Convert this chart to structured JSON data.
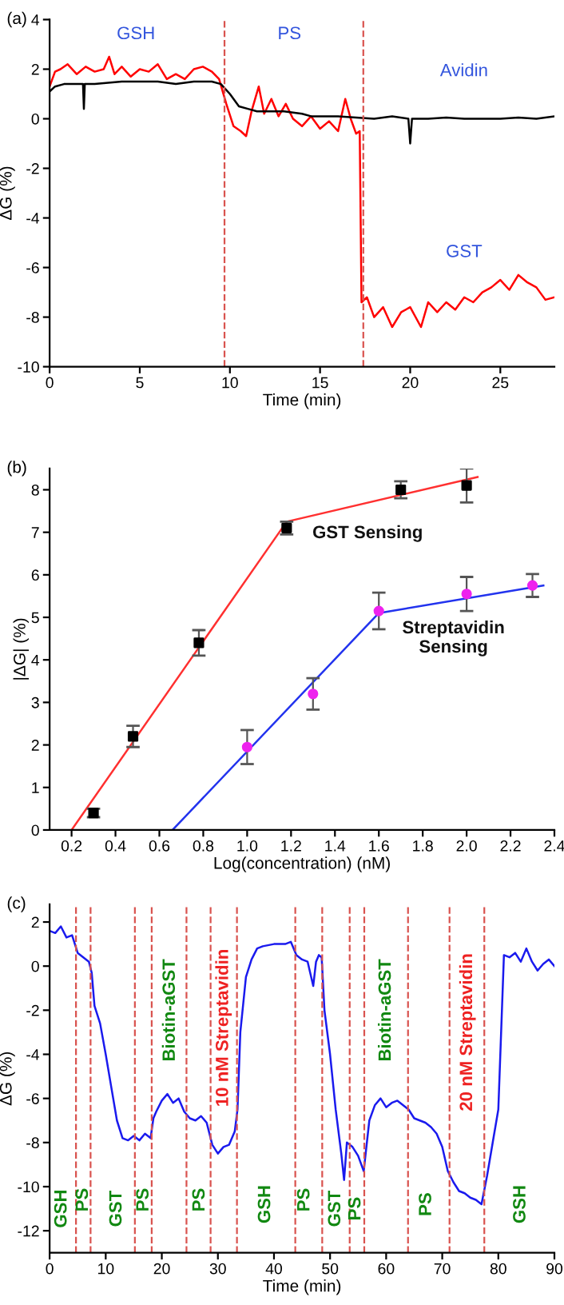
{
  "chart_data": [
    {
      "type": "line",
      "title": "(a)",
      "xlabel": "Time (min)",
      "ylabel": "ΔG (%)",
      "xlim": [
        0,
        28
      ],
      "xticks": [
        0,
        5,
        10,
        15,
        20,
        25
      ],
      "ylim": [
        -10,
        4
      ],
      "yticks": [
        -10,
        -8,
        -6,
        -4,
        -2,
        0,
        2,
        4
      ],
      "grid": false,
      "legend": false,
      "marker": "none",
      "line_style": "solid",
      "series": [
        {
          "color": "#ff0000",
          "x": [
            0,
            0.3,
            0.6,
            1,
            1.5,
            2,
            2.5,
            3,
            3.3,
            3.6,
            4,
            4.5,
            5,
            5.5,
            6,
            6.5,
            7,
            7.5,
            8,
            8.5,
            9,
            9.4,
            9.8,
            10.2,
            10.6,
            10.9,
            11.2,
            11.6,
            11.9,
            12.3,
            12.7,
            13.1,
            13.5,
            14,
            14.5,
            15,
            15.5,
            16,
            16.4,
            16.7,
            17.0,
            17.2,
            17.3,
            17.6,
            18,
            18.5,
            19,
            19.5,
            20,
            20.6,
            21,
            21.5,
            22,
            22.5,
            23,
            23.5,
            24,
            24.5,
            25,
            25.5,
            26,
            26.5,
            27,
            27.5,
            28
          ],
          "values": [
            1.3,
            1.9,
            2.0,
            2.2,
            1.8,
            2.1,
            1.9,
            2.0,
            2.5,
            1.8,
            2.1,
            1.7,
            2.0,
            1.9,
            2.2,
            1.6,
            1.8,
            1.6,
            2.0,
            2.1,
            1.9,
            1.6,
            0.6,
            -0.3,
            -0.5,
            -0.7,
            0.3,
            1.3,
            0.2,
            0.8,
            0.1,
            0.6,
            0.0,
            -0.3,
            0.1,
            -0.4,
            -0.1,
            -0.5,
            0.8,
            0.0,
            -0.6,
            -0.5,
            -7.4,
            -7.2,
            -8.0,
            -7.6,
            -8.4,
            -7.8,
            -7.6,
            -8.4,
            -7.4,
            -7.8,
            -7.4,
            -7.7,
            -7.2,
            -7.4,
            -7.0,
            -6.8,
            -6.5,
            -6.9,
            -6.3,
            -6.6,
            -6.8,
            -7.3,
            -7.2
          ]
        },
        {
          "color": "#000000",
          "x": [
            0,
            0.3,
            0.8,
            1.5,
            1.85,
            1.9,
            1.95,
            2.5,
            4,
            5,
            6,
            7,
            8,
            9,
            9.5,
            10,
            10.5,
            11,
            11.5,
            12,
            13,
            14,
            14.5,
            15,
            16,
            17,
            18,
            19,
            19.9,
            20,
            20.1,
            21,
            22,
            23,
            24,
            25,
            26,
            27,
            28
          ],
          "values": [
            1.1,
            1.3,
            1.4,
            1.4,
            1.4,
            0.4,
            1.4,
            1.4,
            1.5,
            1.5,
            1.5,
            1.4,
            1.5,
            1.5,
            1.4,
            1.0,
            0.5,
            0.4,
            0.3,
            0.3,
            0.3,
            0.2,
            0.1,
            0.1,
            0.1,
            0.05,
            0.0,
            0.1,
            0.0,
            -1.0,
            0.0,
            0.0,
            0.05,
            0.0,
            0.0,
            0.0,
            0.05,
            0.0,
            0.1
          ]
        }
      ],
      "ref_lines": [
        {
          "axis": "x",
          "value": 9.7,
          "color": "#d9534f",
          "line_style": "dashed"
        },
        {
          "axis": "x",
          "value": 17.4,
          "color": "#d9534f",
          "line_style": "dashed"
        }
      ],
      "annotations": [
        "GSH",
        "PS",
        "Avidin",
        "GST"
      ]
    },
    {
      "type": "scatter",
      "title": "(b)",
      "xlabel": "Log(concentration) (nM)",
      "ylabel": "|ΔG| (%)",
      "xlim": [
        0.1,
        2.4
      ],
      "xticks": [
        0.2,
        0.4,
        0.6,
        0.8,
        {
          "value": 1.0,
          "label": "1.0"
        },
        1.2,
        1.4,
        1.6,
        1.8,
        {
          "value": 2.0,
          "label": "2.0"
        },
        2.2,
        2.4
      ],
      "ylim": [
        0,
        8.5
      ],
      "yticks": [
        0,
        1,
        2,
        3,
        4,
        5,
        6,
        7,
        8
      ],
      "grid": false,
      "legend": false,
      "series": [
        {
          "type": "line",
          "color": "#ff3030",
          "x": [
            0.2,
            1.18,
            2.05
          ],
          "values": [
            0,
            7.25,
            8.3
          ]
        },
        {
          "type": "line",
          "color": "#2233ee",
          "x": [
            0.66,
            1.6,
            2.35
          ],
          "values": [
            0,
            5.1,
            5.75
          ]
        },
        {
          "type": "scatter",
          "marker": "square",
          "color": "#000000",
          "x": [
            0.3,
            0.48,
            0.78,
            1.18,
            1.7,
            2.0
          ],
          "values": [
            0.4,
            2.2,
            4.4,
            7.1,
            8.0,
            8.1
          ],
          "errors": [
            0.1,
            0.25,
            0.3,
            0.15,
            0.2,
            0.4
          ]
        },
        {
          "type": "scatter",
          "marker": "circle",
          "color": "#ee22ee",
          "x": [
            1.0,
            1.3,
            1.6,
            2.0,
            2.3
          ],
          "values": [
            1.95,
            3.2,
            5.15,
            5.55,
            5.75
          ],
          "errors": [
            0.4,
            0.37,
            0.43,
            0.4,
            0.27
          ]
        }
      ],
      "annotations": [
        "GST Sensing",
        "Streptavidin\nSensing"
      ]
    },
    {
      "type": "line",
      "title": "(c)",
      "xlabel": "Time (min)",
      "ylabel": "ΔG (%)",
      "xlim": [
        0,
        90
      ],
      "xticks": [
        0,
        10,
        20,
        30,
        40,
        50,
        60,
        70,
        80,
        90
      ],
      "ylim": [
        -13,
        2.8
      ],
      "yticks": [
        -12,
        -10,
        -8,
        -6,
        -4,
        -2,
        0,
        2
      ],
      "grid": false,
      "legend": false,
      "marker": "none",
      "line_style": "solid",
      "series": [
        {
          "color": "#1a1aee",
          "x": [
            0,
            1,
            2,
            3,
            4,
            5,
            6,
            7,
            7.5,
            8,
            9,
            10,
            11,
            12,
            13,
            14,
            15,
            16,
            17,
            18,
            18.5,
            19,
            20,
            21,
            22,
            23,
            24,
            25,
            26,
            27,
            28,
            29,
            30,
            31,
            32,
            33,
            33.5,
            34,
            35,
            36,
            37,
            38,
            40,
            42,
            43,
            44,
            45,
            46,
            47,
            47.5,
            48,
            48.5,
            49,
            50,
            51,
            52,
            52.5,
            53,
            54,
            55,
            56,
            57,
            58,
            59,
            60,
            61,
            62,
            63,
            64,
            65,
            66,
            67,
            68,
            69,
            70,
            71,
            72,
            73,
            74,
            75,
            76,
            77,
            78,
            79,
            80,
            81,
            82,
            83,
            84,
            85,
            86,
            87,
            88,
            89,
            90
          ],
          "values": [
            1.6,
            1.5,
            1.8,
            1.3,
            1.4,
            0.6,
            0.4,
            0.2,
            -0.3,
            -1.8,
            -2.6,
            -4.0,
            -5.5,
            -7.0,
            -7.8,
            -7.9,
            -7.7,
            -7.9,
            -7.6,
            -7.8,
            -6.9,
            -6.6,
            -6.1,
            -5.8,
            -6.2,
            -6.0,
            -6.6,
            -6.9,
            -7.0,
            -6.8,
            -7.1,
            -8.1,
            -8.5,
            -8.2,
            -8.1,
            -7.5,
            -6.5,
            -3.0,
            -0.5,
            0.3,
            0.8,
            0.9,
            1.0,
            1.0,
            1.1,
            0.5,
            0.3,
            0.2,
            -0.9,
            0.2,
            0.5,
            0.4,
            -2.0,
            -4.0,
            -6.5,
            -8.5,
            -9.7,
            -8.0,
            -8.2,
            -8.6,
            -9.3,
            -7.0,
            -6.3,
            -6.0,
            -6.4,
            -6.2,
            -6.1,
            -6.3,
            -6.5,
            -6.9,
            -7.0,
            -7.1,
            -7.3,
            -7.6,
            -8.2,
            -9.3,
            -9.8,
            -10.2,
            -10.3,
            -10.5,
            -10.6,
            -10.8,
            -9.5,
            -8.0,
            -6.5,
            0.5,
            0.4,
            0.6,
            0.2,
            0.8,
            0.2,
            -0.2,
            0.1,
            0.3,
            0.0
          ]
        }
      ],
      "ref_lines": [
        {
          "axis": "x",
          "value": 4.7,
          "color": "#d9534f",
          "line_style": "dashed"
        },
        {
          "axis": "x",
          "value": 7.3,
          "color": "#d9534f",
          "line_style": "dashed"
        },
        {
          "axis": "x",
          "value": 15.2,
          "color": "#d9534f",
          "line_style": "dashed"
        },
        {
          "axis": "x",
          "value": 18.2,
          "color": "#d9534f",
          "line_style": "dashed"
        },
        {
          "axis": "x",
          "value": 24.4,
          "color": "#d9534f",
          "line_style": "dashed"
        },
        {
          "axis": "x",
          "value": 28.7,
          "color": "#d9534f",
          "line_style": "dashed"
        },
        {
          "axis": "x",
          "value": 33.4,
          "color": "#d9534f",
          "line_style": "dashed"
        },
        {
          "axis": "x",
          "value": 43.8,
          "color": "#d9534f",
          "line_style": "dashed"
        },
        {
          "axis": "x",
          "value": 48.6,
          "color": "#d9534f",
          "line_style": "dashed"
        },
        {
          "axis": "x",
          "value": 53.5,
          "color": "#d9534f",
          "line_style": "dashed"
        },
        {
          "axis": "x",
          "value": 56.1,
          "color": "#d9534f",
          "line_style": "dashed"
        },
        {
          "axis": "x",
          "value": 63.9,
          "color": "#d9534f",
          "line_style": "dashed"
        },
        {
          "axis": "x",
          "value": 71.3,
          "color": "#d9534f",
          "line_style": "dashed"
        },
        {
          "axis": "x",
          "value": 77.5,
          "color": "#d9534f",
          "line_style": "dashed"
        }
      ],
      "annotations": [
        "GSH",
        "PS",
        "GST",
        "PS",
        "Biotin-aGST",
        "PS",
        "10 nM Streptavidin",
        "GSH",
        "PS",
        "GST",
        "PS",
        "Biotin-aGST",
        "PS",
        "20 nM Streptavidin",
        "GSH"
      ]
    }
  ]
}
